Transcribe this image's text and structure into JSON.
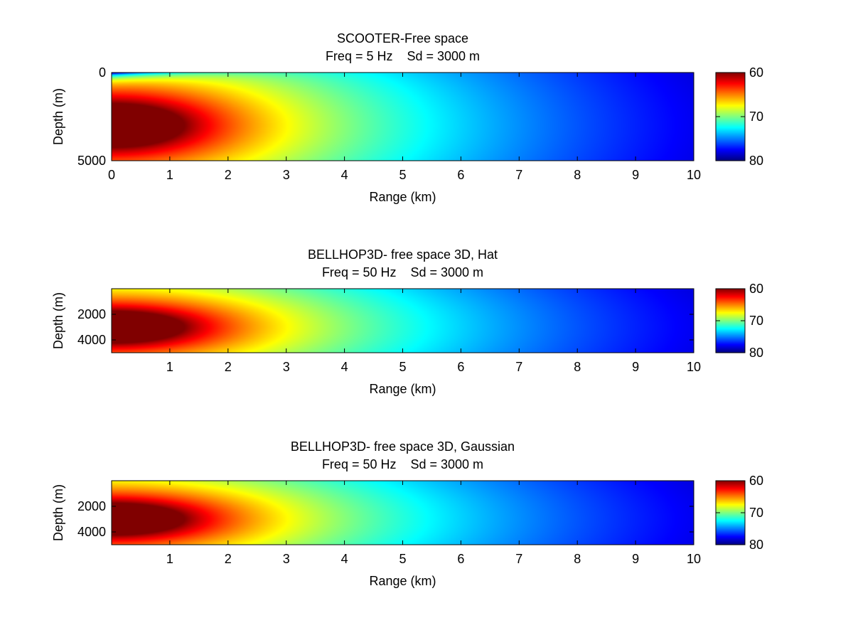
{
  "figure": {
    "colormap": "jet",
    "background": "#ffffff"
  },
  "chart_data": [
    {
      "type": "heatmap",
      "title": "SCOOTER-Free space",
      "subtitle": "Freq = 5 Hz    Sd = 3000 m",
      "xlabel": "Range (km)",
      "ylabel": "Depth (m)",
      "xlim": [
        0,
        10
      ],
      "ylim": [
        0,
        5000
      ],
      "y_reversed": true,
      "xticks": [
        0,
        1,
        2,
        3,
        4,
        5,
        6,
        7,
        8,
        9,
        10
      ],
      "yticks": [
        0,
        5000
      ],
      "source_depth_m": 3000,
      "colorbar": {
        "ticks": [
          60,
          70,
          80
        ],
        "clim": [
          60,
          80
        ],
        "reversed": true
      },
      "surface_effect": true,
      "peak_range_km": 1.0
    },
    {
      "type": "heatmap",
      "title": "BELLHOP3D- free space 3D, Hat",
      "subtitle": "Freq = 50 Hz    Sd = 3000 m",
      "xlabel": "Range (km)",
      "ylabel": "Depth (m)",
      "xlim": [
        0,
        10
      ],
      "ylim": [
        0,
        5000
      ],
      "y_reversed": true,
      "xticks": [
        1,
        2,
        3,
        4,
        5,
        6,
        7,
        8,
        9,
        10
      ],
      "yticks": [
        2000,
        4000
      ],
      "source_depth_m": 3000,
      "colorbar": {
        "ticks": [
          60,
          70,
          80
        ],
        "clim": [
          60,
          80
        ],
        "reversed": true
      },
      "surface_effect": false,
      "peak_range_km": 1.0
    },
    {
      "type": "heatmap",
      "title": "BELLHOP3D- free space 3D, Gaussian",
      "subtitle": "Freq = 50 Hz    Sd = 3000 m",
      "xlabel": "Range (km)",
      "ylabel": "Depth (m)",
      "xlim": [
        0,
        10
      ],
      "ylim": [
        0,
        5000
      ],
      "y_reversed": true,
      "xticks": [
        1,
        2,
        3,
        4,
        5,
        6,
        7,
        8,
        9,
        10
      ],
      "yticks": [
        2000,
        4000
      ],
      "source_depth_m": 3000,
      "colorbar": {
        "ticks": [
          60,
          70,
          80
        ],
        "clim": [
          60,
          80
        ],
        "reversed": true
      },
      "surface_effect": false,
      "peak_range_km": 1.0
    }
  ]
}
